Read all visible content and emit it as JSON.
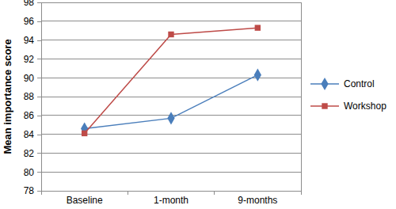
{
  "chart_data": {
    "type": "line",
    "y_label": "Mean importance score",
    "categories": [
      "Baseline",
      "1-month",
      "9-months"
    ],
    "series": [
      {
        "name": "Control",
        "color": "#4a7ebb",
        "marker": "diamond",
        "line_style": "solid",
        "values": [
          84.6,
          85.7,
          90.3
        ]
      },
      {
        "name": "Workshop",
        "color": "#be4b48",
        "marker": "square",
        "line_style": "solid",
        "values": [
          84.1,
          94.6,
          95.3
        ]
      }
    ],
    "ylim": [
      78,
      98
    ],
    "yticks": [
      78,
      80,
      82,
      84,
      86,
      88,
      90,
      92,
      94,
      96,
      98
    ],
    "grid": true,
    "legend": "right"
  }
}
